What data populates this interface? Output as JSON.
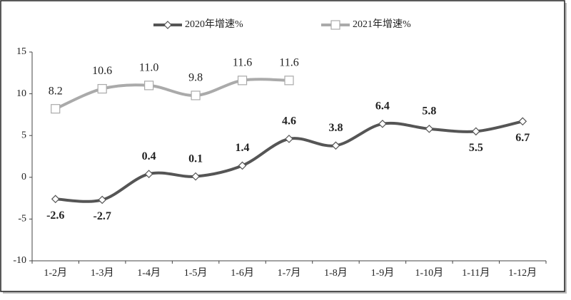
{
  "chart_data": {
    "type": "line",
    "categories": [
      "1-2月",
      "1-3月",
      "1-4月",
      "1-5月",
      "1-6月",
      "1-7月",
      "1-8月",
      "1-9月",
      "1-10月",
      "1-11月",
      "1-12月"
    ],
    "series": [
      {
        "name": "2020年增速%",
        "color": "#555555",
        "marker": "diamond",
        "values": [
          -2.6,
          -2.7,
          0.4,
          0.1,
          1.4,
          4.6,
          3.8,
          6.4,
          5.8,
          5.5,
          6.7
        ]
      },
      {
        "name": "2021年增速%",
        "color": "#aaaaaa",
        "marker": "square",
        "values": [
          8.2,
          10.6,
          11.0,
          9.8,
          11.6,
          11.6,
          null,
          null,
          null,
          null,
          null
        ],
        "value_labels": [
          "8.2",
          "10.6",
          "11.0",
          "9.8",
          "11.6",
          "11.6",
          null,
          null,
          null,
          null,
          null
        ]
      }
    ],
    "ylim": [
      -10,
      15
    ],
    "yticks": [
      15,
      10,
      5,
      0,
      -5,
      -10
    ],
    "smooth": true
  }
}
